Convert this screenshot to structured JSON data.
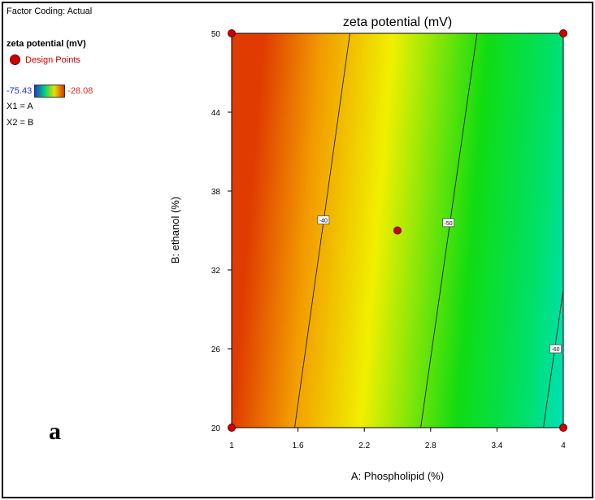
{
  "sidebar": {
    "factor_coding": "Factor Coding: Actual",
    "response_name": "zeta potential (mV)",
    "design_points_label": "Design Points",
    "scale_min": "-75.43",
    "scale_max": "-28.08",
    "x1_mapping": "X1 = A",
    "x2_mapping": "X2 = B"
  },
  "panel_label": "a",
  "colors": {
    "low": "#1e3ccf",
    "mid_low": "#00d27a",
    "mid_high": "#e8e000",
    "high": "#d23800",
    "design_point": "#cc0000"
  },
  "chart_data": {
    "type": "heatmap",
    "title": "zeta potential (mV)",
    "xlabel": "A: Phospholipid (%)",
    "ylabel": "B: ethanol (%)",
    "xlim": [
      1,
      4
    ],
    "ylim": [
      20,
      50
    ],
    "x_ticks": [
      "1",
      "1.6",
      "2.2",
      "2.8",
      "3.4",
      "4"
    ],
    "y_ticks": [
      "20",
      "26",
      "32",
      "38",
      "44",
      "50"
    ],
    "contours": [
      {
        "label": "-40",
        "points": [
          [
            1.57,
            20
          ],
          [
            2.07,
            50
          ]
        ],
        "label_at": [
          1.83,
          35.8
        ]
      },
      {
        "label": "-50",
        "points": [
          [
            2.71,
            20
          ],
          [
            3.22,
            50
          ]
        ],
        "label_at": [
          2.96,
          35.6
        ]
      },
      {
        "label": "-60",
        "points": [
          [
            3.82,
            20
          ],
          [
            4.0,
            30.5
          ]
        ],
        "label_at": [
          3.93,
          26.0
        ]
      }
    ],
    "design_points": [
      {
        "x": 1,
        "y": 50
      },
      {
        "x": 4,
        "y": 50
      },
      {
        "x": 1,
        "y": 20
      },
      {
        "x": 4,
        "y": 20
      },
      {
        "x": 2.5,
        "y": 35
      }
    ]
  }
}
